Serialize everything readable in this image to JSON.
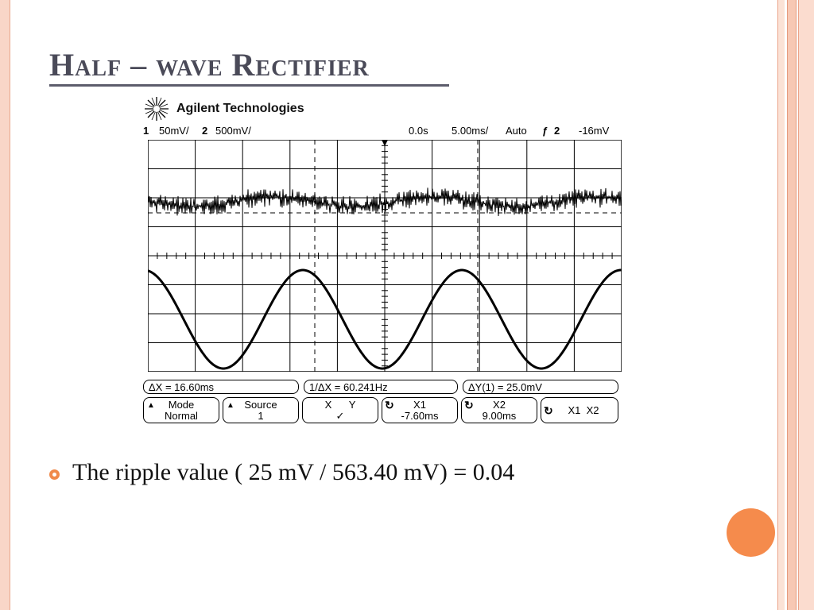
{
  "slide": {
    "title": "Half – wave Rectifier",
    "bullet_text": "The ripple value ( 25 mV / 563.40 mV) = 0.04",
    "accent_color": "#f58b4c",
    "title_color": "#4a4a58"
  },
  "scope": {
    "brand": "Agilent Technologies",
    "status": {
      "ch1": "1",
      "ch1_scale": "50mV/",
      "ch2": "2",
      "ch2_scale": "500mV/",
      "time_offset": "0.0s",
      "time_scale": "5.00ms/",
      "trigger_mode": "Auto",
      "trigger_source": "2",
      "trigger_level": "-16mV"
    },
    "measurements": {
      "delta_x": "ΔX = 16.60ms",
      "inverse_delta_x": "1/ΔX = 60.241Hz",
      "delta_y": "ΔY(1) = 25.0mV"
    },
    "softkeys": {
      "mode_label": "Mode",
      "mode_value": "Normal",
      "source_label": "Source",
      "source_value": "1",
      "xy_label": "X      Y",
      "xy_value": "✓",
      "x1_label": "X1",
      "x1_value": "-7.60ms",
      "x2_label": "X2",
      "x2_value": "9.00ms",
      "x1x2_label": "X1  X2"
    }
  }
}
